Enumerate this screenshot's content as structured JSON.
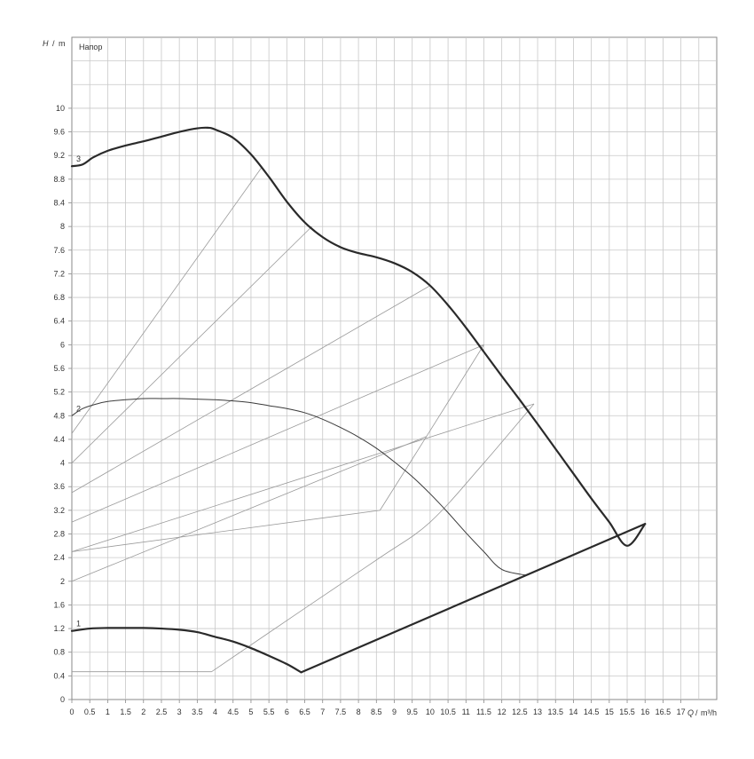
{
  "chart_data": {
    "type": "line",
    "ylabel": {
      "symbol": "H",
      "sep": "/",
      "unit": "m"
    },
    "xlabel": {
      "symbol": "Q",
      "sep": "/",
      "unit": "m³/h"
    },
    "title": "Напор",
    "xlim": [
      0,
      18
    ],
    "ylim": [
      0,
      11.2
    ],
    "grid": true,
    "x_ticks": [
      "0",
      "0.5",
      "1",
      "1.5",
      "2",
      "2.5",
      "3",
      "3.5",
      "4",
      "4.5",
      "5",
      "5.5",
      "6",
      "6.5",
      "7",
      "7.5",
      "8",
      "8.5",
      "9",
      "9.5",
      "10",
      "10.5",
      "11",
      "11.5",
      "12",
      "12.5",
      "13",
      "13.5",
      "14",
      "14.5",
      "15",
      "15.5",
      "16",
      "16.5",
      "17"
    ],
    "y_ticks": [
      "0",
      "0.4",
      "0.8",
      "1.2",
      "1.6",
      "2",
      "2.4",
      "2.8",
      "3.2",
      "3.6",
      "4",
      "4.4",
      "4.8",
      "5.2",
      "5.6",
      "6",
      "6.4",
      "6.8",
      "7.2",
      "7.6",
      "8",
      "8.4",
      "8.8",
      "9.2",
      "9.6",
      "10"
    ],
    "series": [
      {
        "name": "1",
        "style": "bold",
        "x": [
          0,
          0.5,
          1,
          1.5,
          2,
          2.5,
          3,
          3.5,
          4,
          4.5,
          5,
          5.5,
          6,
          6.4
        ],
        "y": [
          1.16,
          1.2,
          1.21,
          1.21,
          1.21,
          1.2,
          1.18,
          1.14,
          1.06,
          0.98,
          0.87,
          0.74,
          0.6,
          0.46
        ]
      },
      {
        "name": "2",
        "style": "thin",
        "x": [
          0,
          0.3,
          0.7,
          1,
          1.5,
          2,
          2.5,
          3,
          3.5,
          4,
          4.5,
          5,
          5.5,
          6,
          6.5,
          7,
          7.5,
          8,
          8.5,
          9,
          9.5,
          10,
          10.5,
          11,
          11.5,
          12,
          12.7
        ],
        "y": [
          4.8,
          4.92,
          5.0,
          5.04,
          5.07,
          5.09,
          5.09,
          5.09,
          5.08,
          5.07,
          5.05,
          5.02,
          4.97,
          4.92,
          4.85,
          4.74,
          4.6,
          4.44,
          4.25,
          4.02,
          3.77,
          3.48,
          3.16,
          2.82,
          2.5,
          2.2,
          2.1
        ]
      },
      {
        "name": "3",
        "style": "bold",
        "x": [
          0,
          0.3,
          0.6,
          1,
          1.5,
          2,
          2.5,
          3,
          3.5,
          3.8,
          4,
          4.5,
          5,
          5.5,
          6,
          6.5,
          7,
          7.5,
          8,
          8.5,
          9,
          9.5,
          10,
          10.5,
          11,
          11.5,
          12,
          12.5,
          13,
          13.5,
          14,
          14.5,
          15,
          15.5,
          16
        ],
        "y": [
          9.02,
          9.05,
          9.17,
          9.28,
          9.37,
          9.44,
          9.52,
          9.6,
          9.66,
          9.67,
          9.64,
          9.5,
          9.22,
          8.84,
          8.42,
          8.07,
          7.82,
          7.65,
          7.55,
          7.48,
          7.38,
          7.23,
          7.0,
          6.67,
          6.29,
          5.88,
          5.47,
          5.07,
          4.66,
          4.24,
          3.82,
          3.4,
          3.0,
          2.6,
          2.97
        ]
      },
      {
        "name": "",
        "style": "bold",
        "x": [
          6.4,
          16
        ],
        "y": [
          0.46,
          2.97
        ]
      }
    ],
    "aux_lines": [
      {
        "x": [
          0,
          5.3
        ],
        "y": [
          4.5,
          9.0
        ]
      },
      {
        "x": [
          0,
          6.7
        ],
        "y": [
          4.0,
          8.0
        ]
      },
      {
        "x": [
          0,
          10
        ],
        "y": [
          3.5,
          7.0
        ]
      },
      {
        "x": [
          0,
          11.5
        ],
        "y": [
          3.0,
          6.0
        ]
      },
      {
        "x": [
          0,
          12.9
        ],
        "y": [
          2.5,
          5.0
        ]
      },
      {
        "x": [
          0,
          9.9
        ],
        "y": [
          2.0,
          4.45
        ]
      },
      {
        "x": [
          0,
          8.6
        ],
        "y": [
          2.5,
          3.2
        ]
      },
      {
        "x": [
          8.6,
          9.9,
          11.5
        ],
        "y": [
          3.2,
          4.45,
          6.0
        ]
      },
      {
        "x": [
          0,
          3.9
        ],
        "y": [
          0.47,
          0.47
        ]
      },
      {
        "x": [
          3.9,
          6.4,
          8.6,
          10,
          11.5,
          12.9
        ],
        "y": [
          0.47,
          1.5,
          2.4,
          3.0,
          4.0,
          5.0
        ]
      }
    ]
  }
}
